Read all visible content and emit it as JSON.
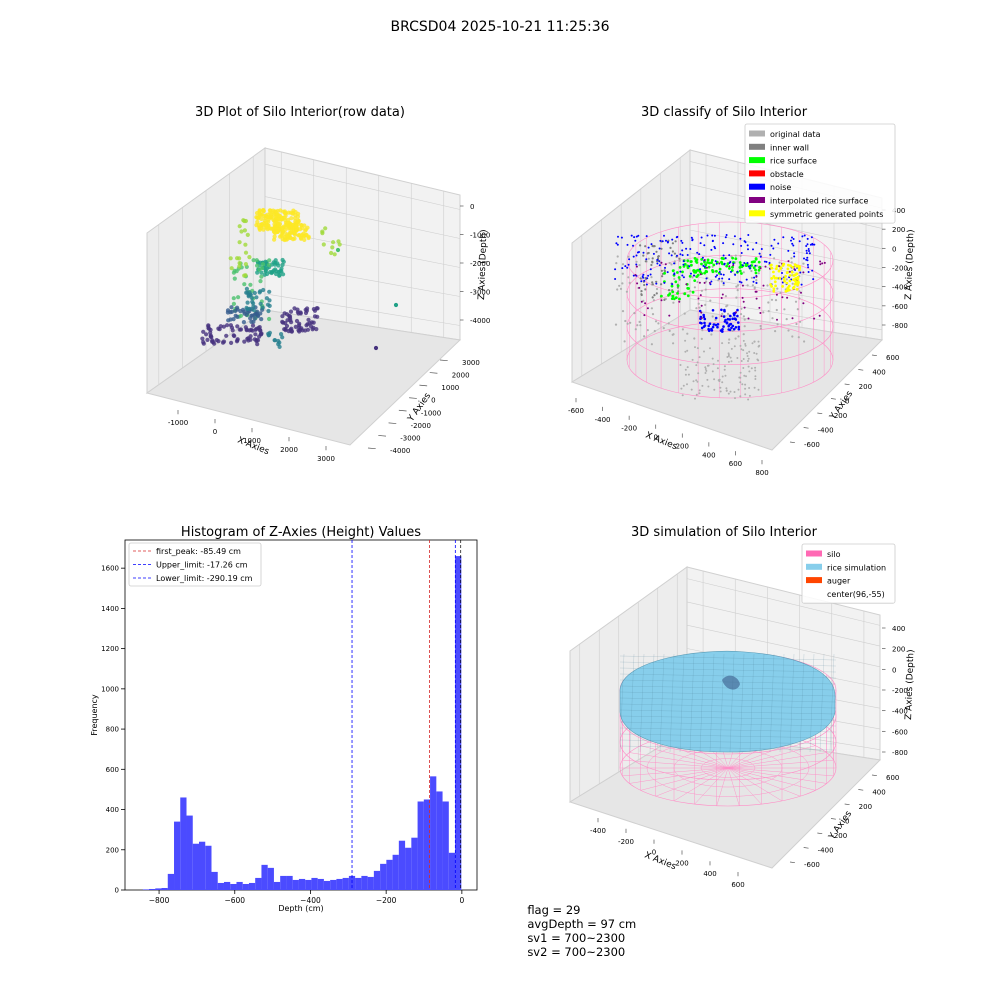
{
  "figure": {
    "suptitle": "BRCSD04 2025-10-21 11:25:36"
  },
  "status": {
    "flag": "flag = 29",
    "avg_depth": "avgDepth = 97 cm",
    "sv1": "sv1 = 700~2300",
    "sv2": "sv2 = 700~2300"
  },
  "colors": {
    "hist_bar": "#4b4bff",
    "first_peak_line": "#d62728",
    "upper_limit_line": "#0000ff",
    "lower_limit_line": "#0000ff",
    "silo_pink": "#ff69b4",
    "rice_sky": "#87ceeb",
    "auger_orange": "#ff4500"
  },
  "chart_data": [
    {
      "type": "scatter",
      "title": "3D Plot of Silo Interior(row data)",
      "xlabel": "X Axies",
      "ylabel": "Y Axies",
      "zlabel": "Z Axies (Depth)",
      "x_ticks": [
        "-1000",
        "0",
        "1000",
        "2000",
        "3000"
      ],
      "y_ticks": [
        "-4000",
        "-3000",
        "-2000",
        "-1000",
        "0",
        "1000",
        "2000",
        "3000"
      ],
      "z_ticks": [
        "-4000",
        "-3000",
        "-2000",
        "-1000",
        "0"
      ],
      "colormap": "viridis"
    },
    {
      "type": "scatter",
      "title": "3D classify of Silo Interior",
      "xlabel": "X Axies",
      "ylabel": "Y Axies",
      "zlabel": "Z Axies (Depth)",
      "x_ticks": [
        "-600",
        "-400",
        "-200",
        "0",
        "200",
        "400",
        "600",
        "800"
      ],
      "y_ticks": [
        "-600",
        "-400",
        "-200",
        "0",
        "200",
        "400",
        "600"
      ],
      "z_ticks": [
        "-800",
        "-600",
        "-400",
        "-200",
        "0",
        "200",
        "400"
      ],
      "legend_position": "top-right",
      "legend": [
        {
          "label": "original data",
          "color": "#b0b0b0"
        },
        {
          "label": "inner wall",
          "color": "#808080"
        },
        {
          "label": "rice surface",
          "color": "#00ff00"
        },
        {
          "label": "obstacle",
          "color": "#ff0000"
        },
        {
          "label": "noise",
          "color": "#0000ff"
        },
        {
          "label": "interpolated rice surface",
          "color": "#800080"
        },
        {
          "label": "symmetric generated points",
          "color": "#ffff00"
        }
      ]
    },
    {
      "type": "bar",
      "title": "Histogram of Z-Axies (Height) Values",
      "xlabel": "Depth (cm)",
      "ylabel": "Frequency",
      "xlim": [
        -890,
        40
      ],
      "ylim": [
        0,
        1740
      ],
      "x_ticks": [
        -800,
        -600,
        -400,
        -200,
        0
      ],
      "y_ticks": [
        0,
        200,
        400,
        600,
        800,
        1000,
        1200,
        1400,
        1600
      ],
      "bin_width": 16.5,
      "bins": [
        [
          -843,
          3
        ],
        [
          -826.5,
          5
        ],
        [
          -810,
          8
        ],
        [
          -793.5,
          10
        ],
        [
          -777,
          80
        ],
        [
          -760.5,
          340
        ],
        [
          -744,
          460
        ],
        [
          -727.5,
          370
        ],
        [
          -711,
          230
        ],
        [
          -694.5,
          240
        ],
        [
          -678,
          220
        ],
        [
          -661.5,
          90
        ],
        [
          -645,
          35
        ],
        [
          -628.5,
          40
        ],
        [
          -612,
          30
        ],
        [
          -595.5,
          40
        ],
        [
          -579,
          30
        ],
        [
          -562.5,
          35
        ],
        [
          -546,
          60
        ],
        [
          -529.5,
          125
        ],
        [
          -513,
          110
        ],
        [
          -496.5,
          40
        ],
        [
          -480,
          70
        ],
        [
          -463.5,
          70
        ],
        [
          -447,
          50
        ],
        [
          -430.5,
          55
        ],
        [
          -414,
          50
        ],
        [
          -397.5,
          60
        ],
        [
          -381,
          55
        ],
        [
          -364.5,
          45
        ],
        [
          -348,
          50
        ],
        [
          -331.5,
          55
        ],
        [
          -315,
          60
        ],
        [
          -298.5,
          70
        ],
        [
          -282,
          60
        ],
        [
          -265.5,
          70
        ],
        [
          -249,
          65
        ],
        [
          -232.5,
          95
        ],
        [
          -216,
          130
        ],
        [
          -199.5,
          150
        ],
        [
          -183,
          175
        ],
        [
          -166.5,
          245
        ],
        [
          -150,
          210
        ],
        [
          -133.5,
          260
        ],
        [
          -117,
          440
        ],
        [
          -100.5,
          450
        ],
        [
          -84,
          565
        ],
        [
          -67.5,
          490
        ],
        [
          -51,
          440
        ],
        [
          -34.5,
          185
        ],
        [
          -18,
          1660
        ]
      ],
      "vlines": [
        {
          "label": "first_peak: -85.49 cm",
          "value": -85.49,
          "color": "#d62728"
        },
        {
          "label": "Upper_limit: -17.26 cm",
          "value": -17.26,
          "color": "#0000ff"
        },
        {
          "label": "Lower_limit: -290.19 cm",
          "value": -290.19,
          "color": "#0000ff"
        }
      ],
      "extra_vline": -3,
      "legend_position": "top-left"
    },
    {
      "type": "area",
      "title": "3D simulation of Silo Interior",
      "xlabel": "X Axies",
      "ylabel": "Y Axies",
      "zlabel": "Z Axies (Depth)",
      "x_ticks": [
        "-400",
        "-200",
        "0",
        "200",
        "400",
        "600"
      ],
      "y_ticks": [
        "-600",
        "-400",
        "-200",
        "0",
        "200",
        "400",
        "600"
      ],
      "z_ticks": [
        "-800",
        "-600",
        "-400",
        "-200",
        "0",
        "200",
        "400"
      ],
      "legend_position": "top-right",
      "legend": [
        {
          "label": "silo",
          "color": "#ff69b4"
        },
        {
          "label": "rice simulation",
          "color": "#87ceeb"
        },
        {
          "label": "auger",
          "color": "#ff4500"
        },
        {
          "label": "center(96,-55)",
          "color": "#ffffff"
        }
      ]
    }
  ]
}
